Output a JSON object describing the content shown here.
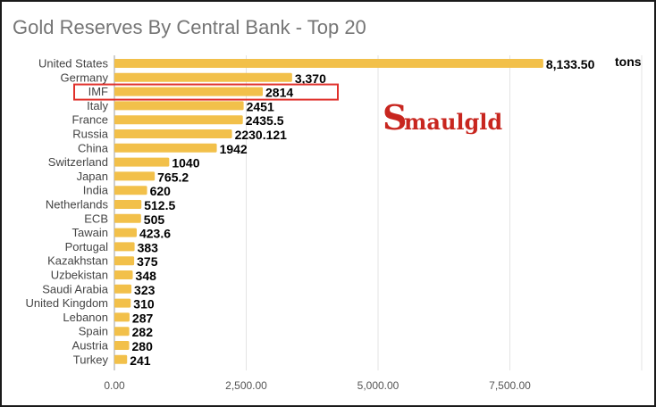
{
  "chart_data": {
    "type": "bar",
    "orientation": "horizontal",
    "title": "Gold Reserves By Central Bank - Top 20",
    "xlabel": "",
    "ylabel": "",
    "categories": [
      "United States",
      "Germany",
      "IMF",
      "Italy",
      "France",
      "Russia",
      "China",
      "Switzerland",
      "Japan",
      "India",
      "Netherlands",
      "ECB",
      "Tawain",
      "Portugal",
      "Kazakhstan",
      "Uzbekistan",
      "Saudi Arabia",
      "United Kingdom",
      "Lebanon",
      "Spain",
      "Austria",
      "Turkey"
    ],
    "values": [
      8133.5,
      3370,
      2814,
      2451,
      2435.5,
      2230.121,
      1942,
      1040,
      765.2,
      620,
      512.5,
      505,
      423.6,
      383,
      375,
      348,
      323,
      310,
      287,
      282,
      280,
      241
    ],
    "value_labels": [
      "8,133.50",
      "3,370",
      "2814",
      "2451",
      "2435.5",
      "2230.121",
      "1942",
      "1040",
      "765.2",
      "620",
      "512.5",
      "505",
      "423.6",
      "383",
      "375",
      "348",
      "323",
      "310",
      "287",
      "282",
      "280",
      "241"
    ],
    "unit_label": "tons",
    "x_ticks": [
      "0.00",
      "2,500.00",
      "5,000.00",
      "7,500.00"
    ],
    "x_tick_values": [
      0,
      2500,
      5000,
      7500
    ],
    "xlim": [
      0,
      10000
    ],
    "grid": true,
    "legend": "none",
    "bar_color": "#F2C04A",
    "highlighted_category": "IMF",
    "highlight_color": "#E0302A"
  },
  "watermark": {
    "text": "Smaulgld",
    "color": "#C8261F"
  }
}
